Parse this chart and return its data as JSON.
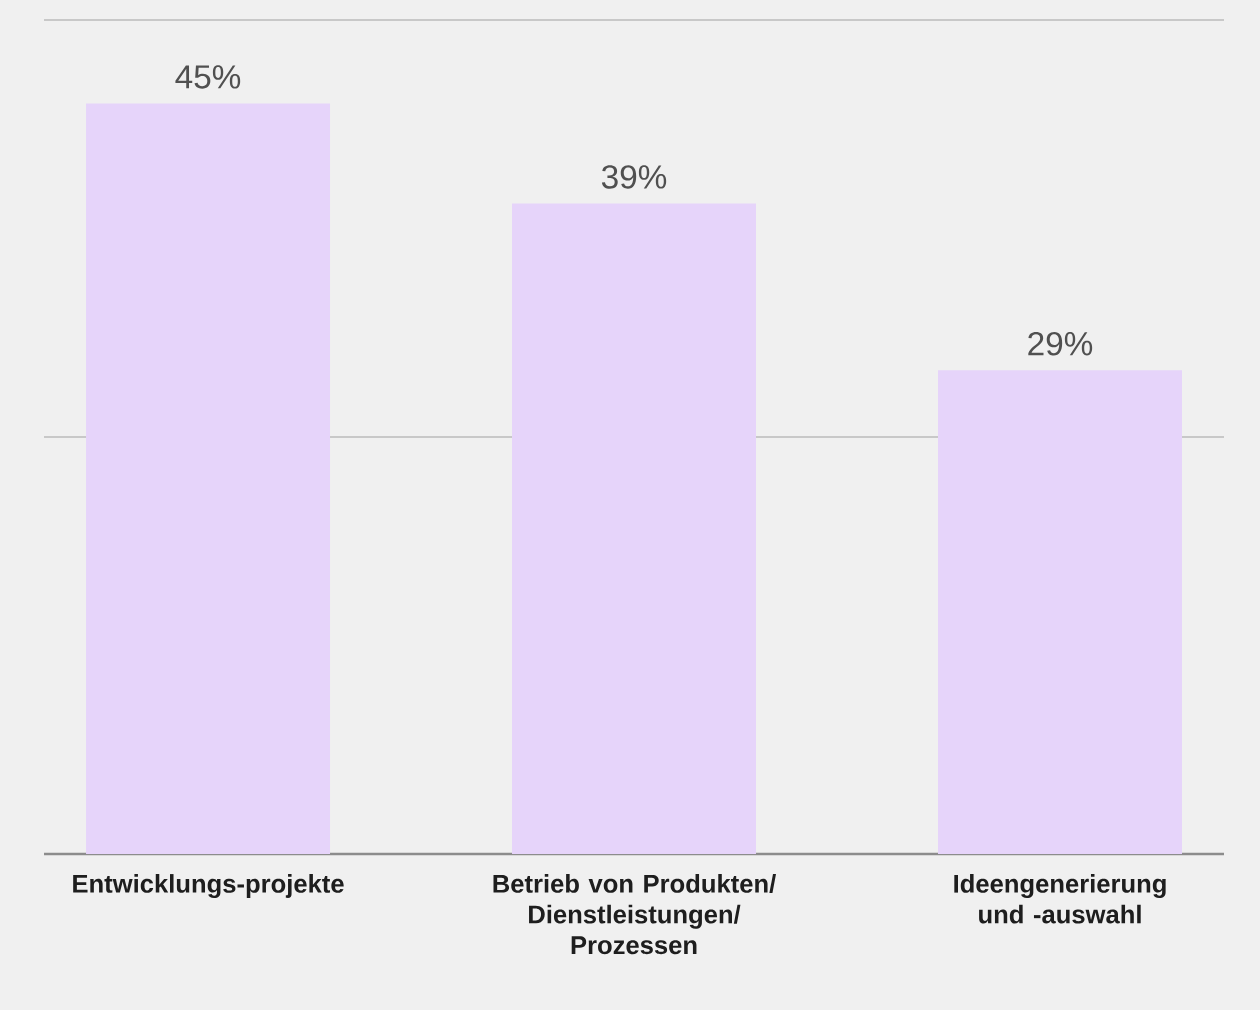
{
  "chart_data": {
    "type": "bar",
    "categories": [
      "Entwicklungs-projekte",
      "Betrieb von Produkten/ Dienstleistungen/ Prozessen",
      "Ideengenerierung und -auswahl"
    ],
    "values": [
      45,
      39,
      29
    ],
    "value_labels": [
      "45%",
      "39%",
      "29%"
    ],
    "color": "#e6d4fa",
    "ylim": [
      0,
      50
    ],
    "yticks": [
      {
        "value": 0,
        "label": null
      },
      {
        "value": 25,
        "label": null
      },
      {
        "value": 50,
        "label": null
      }
    ],
    "grid": "y",
    "tick_labels": "x"
  }
}
